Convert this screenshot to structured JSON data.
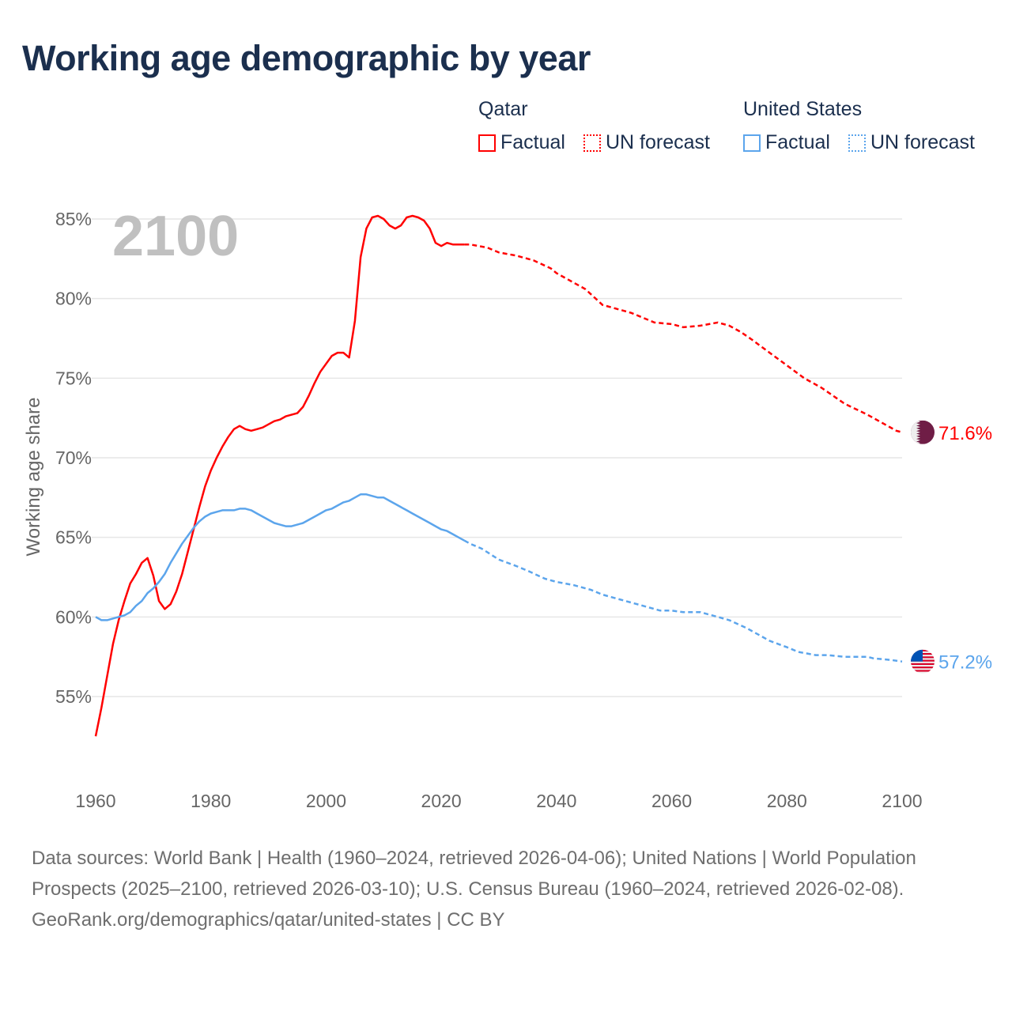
{
  "title": "Working age demographic by year",
  "legend": {
    "groups": [
      {
        "country": "Qatar",
        "factual_label": "Factual",
        "forecast_label": "UN forecast",
        "color": "#ff0000"
      },
      {
        "country": "United States",
        "factual_label": "Factual",
        "forecast_label": "UN forecast",
        "color": "#5ca5ec"
      }
    ]
  },
  "footer": {
    "sources": "Data sources: World Bank | Health (1960–2024, retrieved 2026-04-06); United Nations | World Population Prospects (2025–2100, retrieved 2026-03-10); U.S. Census Bureau (1960–2024, retrieved 2026-02-08).",
    "link": "GeoRank.org/demographics/qatar/united-states | CC BY"
  },
  "chart_data": {
    "type": "line",
    "title": "Working age demographic by year",
    "ylabel": "Working age share",
    "xlabel": "",
    "xlim": [
      1960,
      2100
    ],
    "ylim": [
      50,
      87
    ],
    "year_overlay": "2100",
    "xticks": [
      "1960",
      "1980",
      "2000",
      "2020",
      "2040",
      "2060",
      "2080",
      "2100"
    ],
    "yticks": [
      "55%",
      "60%",
      "65%",
      "70%",
      "75%",
      "80%",
      "85%"
    ],
    "grid": true,
    "series": [
      {
        "name": "Qatar",
        "color": "#ff0000",
        "end_label": "71.6%",
        "flag": "qatar-flag",
        "factual": {
          "x": [
            1960,
            1961,
            1962,
            1963,
            1964,
            1965,
            1966,
            1967,
            1968,
            1969,
            1970,
            1971,
            1972,
            1973,
            1974,
            1975,
            1976,
            1977,
            1978,
            1979,
            1980,
            1981,
            1982,
            1983,
            1984,
            1985,
            1986,
            1987,
            1988,
            1989,
            1990,
            1991,
            1992,
            1993,
            1994,
            1995,
            1996,
            1997,
            1998,
            1999,
            2000,
            2001,
            2002,
            2003,
            2004,
            2005,
            2006,
            2007,
            2008,
            2009,
            2010,
            2011,
            2012,
            2013,
            2014,
            2015,
            2016,
            2017,
            2018,
            2019,
            2020,
            2021,
            2022,
            2023,
            2024
          ],
          "y": [
            52.5,
            54.3,
            56.3,
            58.3,
            59.8,
            61.0,
            62.1,
            62.7,
            63.4,
            63.7,
            62.6,
            61.0,
            60.5,
            60.8,
            61.6,
            62.7,
            64.1,
            65.5,
            66.9,
            68.2,
            69.2,
            70.0,
            70.7,
            71.3,
            71.8,
            72.0,
            71.8,
            71.7,
            71.8,
            71.9,
            72.1,
            72.3,
            72.4,
            72.6,
            72.7,
            72.8,
            73.2,
            73.9,
            74.7,
            75.4,
            75.9,
            76.4,
            76.6,
            76.6,
            76.3,
            78.6,
            82.6,
            84.4,
            85.1,
            85.2,
            85.0,
            84.6,
            84.4,
            84.6,
            85.1,
            85.2,
            85.1,
            84.9,
            84.4,
            83.5,
            83.3,
            83.5,
            83.4,
            83.4,
            83.4
          ]
        },
        "forecast": {
          "x": [
            2024,
            2025,
            2028,
            2030,
            2033,
            2036,
            2039,
            2040,
            2045,
            2048,
            2050,
            2053,
            2055,
            2057,
            2060,
            2062,
            2065,
            2068,
            2070,
            2072,
            2074,
            2077,
            2080,
            2083,
            2086,
            2090,
            2094,
            2097,
            2099,
            2100
          ],
          "y": [
            83.4,
            83.4,
            83.2,
            82.9,
            82.7,
            82.4,
            81.9,
            81.6,
            80.6,
            79.6,
            79.4,
            79.1,
            78.8,
            78.5,
            78.4,
            78.2,
            78.3,
            78.5,
            78.3,
            77.9,
            77.4,
            76.6,
            75.8,
            75.0,
            74.4,
            73.4,
            72.7,
            72.1,
            71.7,
            71.6
          ]
        }
      },
      {
        "name": "United States",
        "color": "#5ca5ec",
        "end_label": "57.2%",
        "flag": "us-flag",
        "factual": {
          "x": [
            1960,
            1961,
            1962,
            1963,
            1964,
            1965,
            1966,
            1967,
            1968,
            1969,
            1970,
            1971,
            1972,
            1973,
            1974,
            1975,
            1976,
            1977,
            1978,
            1979,
            1980,
            1981,
            1982,
            1983,
            1984,
            1985,
            1986,
            1987,
            1988,
            1989,
            1990,
            1991,
            1992,
            1993,
            1994,
            1995,
            1996,
            1997,
            1998,
            1999,
            2000,
            2001,
            2002,
            2003,
            2004,
            2005,
            2006,
            2007,
            2008,
            2009,
            2010,
            2011,
            2012,
            2013,
            2014,
            2015,
            2016,
            2017,
            2018,
            2019,
            2020,
            2021,
            2022,
            2023,
            2024
          ],
          "y": [
            60.0,
            59.8,
            59.8,
            59.9,
            60.0,
            60.1,
            60.3,
            60.7,
            61.0,
            61.5,
            61.8,
            62.2,
            62.7,
            63.4,
            64.0,
            64.6,
            65.1,
            65.6,
            66.0,
            66.3,
            66.5,
            66.6,
            66.7,
            66.7,
            66.7,
            66.8,
            66.8,
            66.7,
            66.5,
            66.3,
            66.1,
            65.9,
            65.8,
            65.7,
            65.7,
            65.8,
            65.9,
            66.1,
            66.3,
            66.5,
            66.7,
            66.8,
            67.0,
            67.2,
            67.3,
            67.5,
            67.7,
            67.7,
            67.6,
            67.5,
            67.5,
            67.3,
            67.1,
            66.9,
            66.7,
            66.5,
            66.3,
            66.1,
            65.9,
            65.7,
            65.5,
            65.4,
            65.2,
            65.0,
            64.8
          ]
        },
        "forecast": {
          "x": [
            2024,
            2025,
            2027,
            2030,
            2033,
            2035,
            2038,
            2040,
            2043,
            2046,
            2048,
            2050,
            2053,
            2056,
            2058,
            2060,
            2062,
            2065,
            2068,
            2070,
            2073,
            2077,
            2080,
            2082,
            2085,
            2087,
            2090,
            2094,
            2095,
            2098,
            2100
          ],
          "y": [
            64.8,
            64.6,
            64.3,
            63.6,
            63.2,
            62.9,
            62.4,
            62.2,
            62.0,
            61.7,
            61.4,
            61.2,
            60.9,
            60.6,
            60.4,
            60.4,
            60.3,
            60.3,
            60.0,
            59.8,
            59.3,
            58.5,
            58.1,
            57.8,
            57.6,
            57.6,
            57.5,
            57.5,
            57.4,
            57.3,
            57.2
          ]
        }
      }
    ]
  }
}
